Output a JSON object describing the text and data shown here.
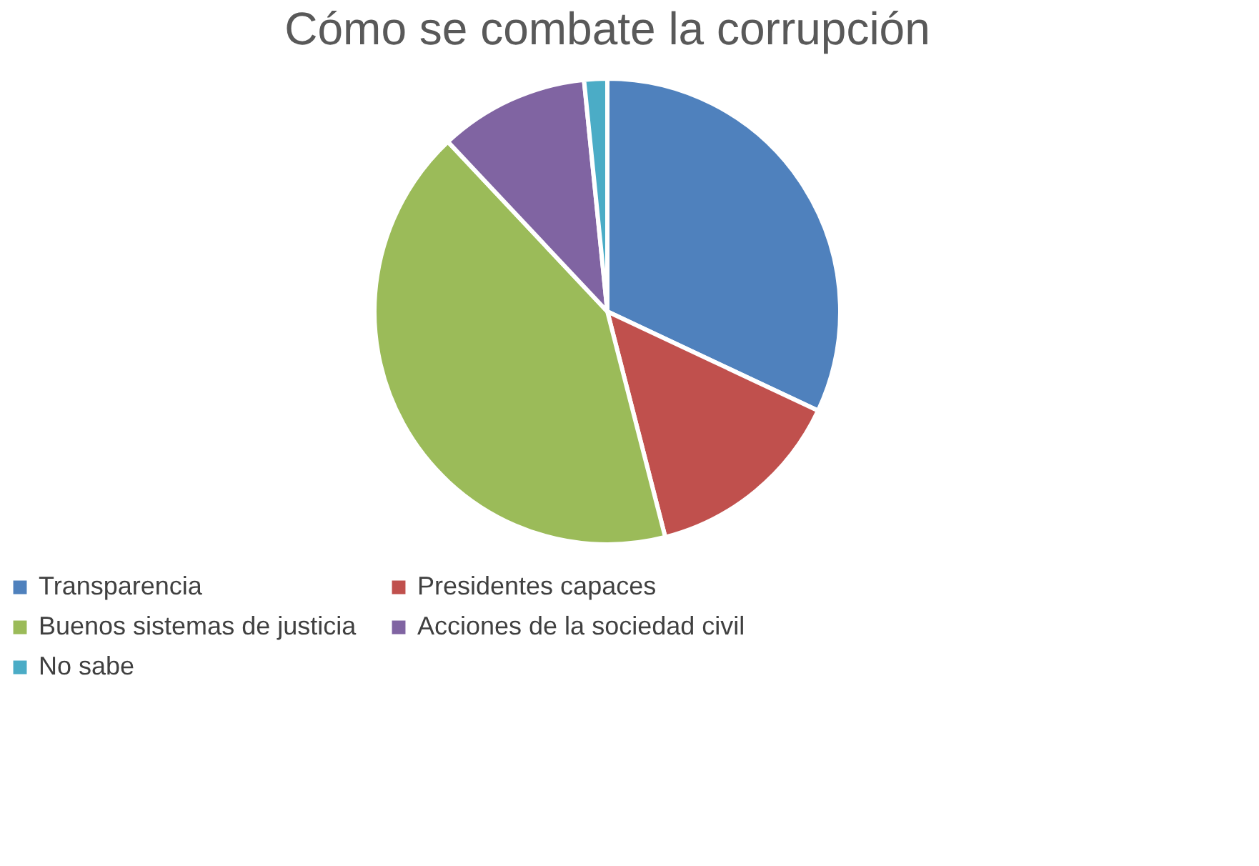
{
  "chart_data": {
    "type": "pie",
    "title": "Cómo se combate la  corrupción",
    "categories": [
      "Transparencia",
      "Presidentes capaces",
      "Buenos sistemas de justicia",
      "Acciones de la sociedad civil",
      "No sabe"
    ],
    "values": [
      32,
      14,
      42,
      10.4,
      1.6
    ],
    "colors": [
      "#4f81bd",
      "#c0504d",
      "#9bbb59",
      "#8064a2",
      "#4bacc6"
    ],
    "legend": "bottom"
  }
}
